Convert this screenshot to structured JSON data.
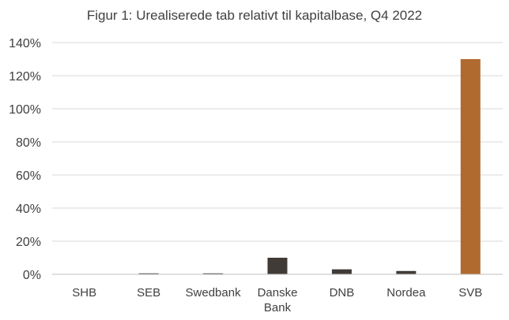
{
  "chart_data": {
    "type": "bar",
    "title": "Figur 1: Urealiserede tab relativt til kapitalbase, Q4 2022",
    "xlabel": "",
    "ylabel": "",
    "categories": [
      [
        "SHB"
      ],
      [
        "SEB"
      ],
      [
        "Swedbank"
      ],
      [
        "Danske",
        "Bank"
      ],
      [
        "DNB"
      ],
      [
        "Nordea"
      ],
      [
        "SVB"
      ]
    ],
    "values": [
      0,
      0.4,
      0.4,
      10,
      3,
      2,
      130
    ],
    "unit": "%",
    "ylim": [
      0,
      140
    ],
    "yticks": [
      0,
      20,
      40,
      60,
      80,
      100,
      120,
      140
    ],
    "ytick_labels": [
      "0%",
      "20%",
      "40%",
      "60%",
      "80%",
      "100%",
      "120%",
      "140%"
    ],
    "grid": true,
    "legend": "none",
    "colors": {
      "default_bar": "#403b37",
      "highlight_bar": "#b06a2f",
      "gridline": "#d9d9d9",
      "axis": "#bfbfbf",
      "text": "#404040"
    },
    "highlight_index": 6
  }
}
